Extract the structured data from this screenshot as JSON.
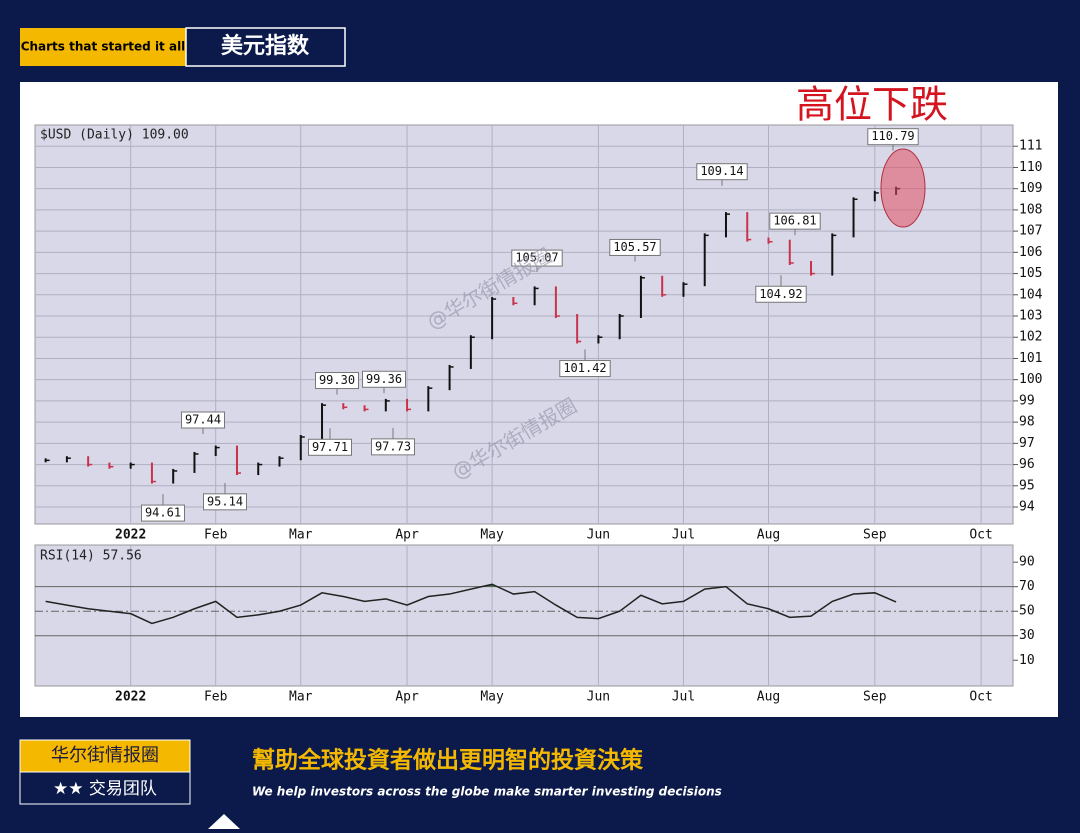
{
  "frame": {
    "tag": "Charts that started it all",
    "heading": "美元指数",
    "brand": "华尔街情报圈",
    "team": "★★ 交易团队",
    "slogan": "幫助全球投資者做出更明智的投資決策",
    "slogan_en": "We help investors across the globe make smarter investing decisions"
  },
  "chart_data": [
    {
      "type": "stock",
      "title": "$USD (Daily) 109.00",
      "categories": [
        null,
        null,
        null,
        null,
        "2022",
        null,
        null,
        null,
        "Feb",
        null,
        null,
        null,
        "Mar",
        null,
        null,
        null,
        null,
        "Apr",
        null,
        null,
        null,
        "May",
        null,
        null,
        null,
        null,
        "Jun",
        null,
        null,
        null,
        "Jul",
        null,
        null,
        null,
        "Aug",
        null,
        null,
        null,
        null,
        "Sep",
        null,
        null,
        null,
        null,
        "Oct",
        null
      ],
      "values": [
        96.2,
        96.3,
        96.0,
        95.9,
        96.0,
        95.2,
        95.7,
        96.5,
        96.8,
        95.6,
        96.0,
        96.3,
        97.3,
        98.8,
        98.7,
        98.6,
        99.0,
        98.6,
        99.6,
        100.6,
        102.0,
        103.8,
        103.6,
        104.3,
        103.0,
        101.8,
        102.0,
        103.0,
        104.8,
        104.0,
        104.5,
        106.8,
        107.8,
        106.6,
        106.5,
        105.5,
        105.0,
        106.8,
        108.5,
        108.8,
        109.0,
        null,
        null,
        null,
        null,
        null
      ],
      "up_color": "#111111",
      "down_color": "#c8324b",
      "ylim": [
        93.2,
        112
      ],
      "yticks": [
        94,
        95,
        96,
        97,
        98,
        99,
        100,
        101,
        102,
        103,
        104,
        105,
        106,
        107,
        108,
        109,
        110,
        111
      ],
      "grid": true,
      "annotations": [
        {
          "value": 94.61,
          "label": "94.61"
        },
        {
          "value": 95.14,
          "label": "95.14"
        },
        {
          "value": 97.44,
          "label": "97.44"
        },
        {
          "value": 99.3,
          "label": "99.30"
        },
        {
          "value": 97.71,
          "label": "97.71"
        },
        {
          "value": 99.36,
          "label": "99.36"
        },
        {
          "value": 97.73,
          "label": "97.73"
        },
        {
          "value": 105.07,
          "label": "105.07"
        },
        {
          "value": 101.42,
          "label": "101.42"
        },
        {
          "value": 105.57,
          "label": "105.57"
        },
        {
          "value": 109.14,
          "label": "109.14"
        },
        {
          "value": 106.81,
          "label": "106.81"
        },
        {
          "value": 104.92,
          "label": "104.92"
        },
        {
          "value": 110.79,
          "label": "110.79"
        }
      ],
      "callout": "高位下跌",
      "watermark": "@华尔街情报圈"
    },
    {
      "type": "line",
      "title": "RSI(14) 57.56",
      "categories": [
        null,
        null,
        null,
        null,
        "2022",
        null,
        null,
        null,
        "Feb",
        null,
        null,
        null,
        "Mar",
        null,
        null,
        null,
        null,
        "Apr",
        null,
        null,
        null,
        "May",
        null,
        null,
        null,
        null,
        "Jun",
        null,
        null,
        null,
        "Jul",
        null,
        null,
        null,
        "Aug",
        null,
        null,
        null,
        null,
        "Sep",
        null,
        null,
        null,
        null,
        "Oct",
        null
      ],
      "values": [
        58,
        55,
        52,
        50,
        48,
        40,
        45,
        52,
        58,
        45,
        47,
        50,
        55,
        65,
        62,
        58,
        60,
        55,
        62,
        64,
        68,
        72,
        64,
        66,
        55,
        45,
        44,
        50,
        63,
        56,
        58,
        68,
        70,
        56,
        52,
        45,
        46,
        58,
        64,
        65,
        57.56,
        null,
        null,
        null,
        null,
        null
      ],
      "color": "#222222",
      "ylim": [
        -11,
        104
      ],
      "yticks": [
        10,
        30,
        50,
        70,
        90
      ],
      "levels": [
        30,
        50,
        70
      ],
      "fill_above": 70,
      "fill_color": "#3d6b47"
    }
  ]
}
